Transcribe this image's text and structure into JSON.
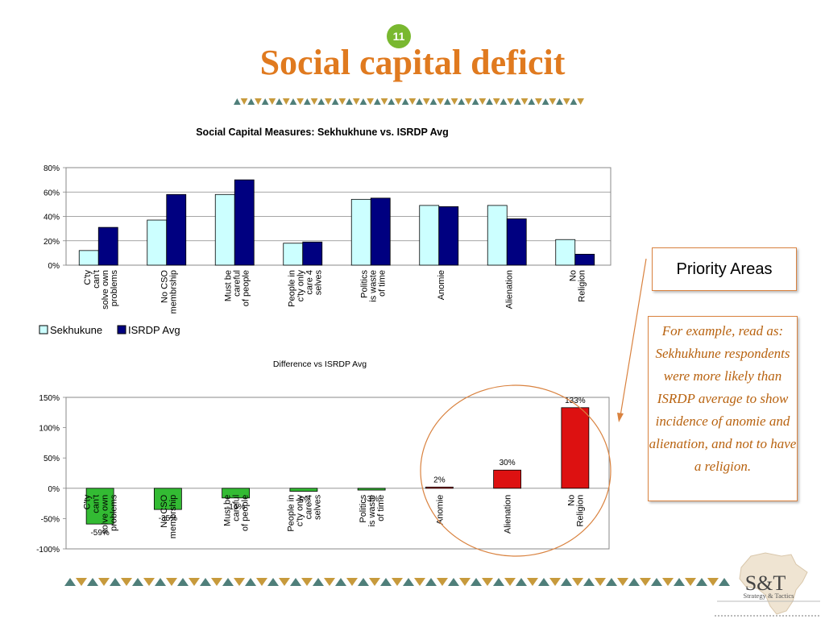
{
  "slide": {
    "number": "11",
    "title": "Social capital deficit"
  },
  "colors": {
    "title": "#e07a1f",
    "sekhukune": "#ccffff",
    "isrdp": "#000080",
    "negative": "#33bb33",
    "positive": "#dd1111",
    "border_accent": "#d9823f"
  },
  "callouts": {
    "priority": "Priority Areas",
    "note": "For example, read as: Sekhukhune respondents were more likely than ISRDP average to show incidence of  anomie and alienation, and not to have a religion."
  },
  "logo": {
    "brand": "S&T",
    "tagline": "Strategy & Tactics",
    "icon": "africa-map-icon"
  },
  "chart_data": [
    {
      "type": "bar",
      "title": "Social Capital Measures: Sekhukhune vs. ISRDP Avg",
      "categories": [
        "C'ty can't solve own problems",
        "No CSO membrship",
        "Must be careful of people",
        "People in c'ty only care 4 selves",
        "Politics is waste of time",
        "Anomie",
        "Alienation",
        "No Religion"
      ],
      "series": [
        {
          "name": "Sekhukune",
          "values": [
            0.12,
            0.37,
            0.58,
            0.18,
            0.54,
            0.49,
            0.49,
            0.21
          ]
        },
        {
          "name": "ISRDP Avg",
          "values": [
            0.31,
            0.58,
            0.7,
            0.19,
            0.55,
            0.48,
            0.38,
            0.09
          ]
        }
      ],
      "ylim": [
        0,
        0.8
      ],
      "yticks": [
        "0%",
        "20%",
        "40%",
        "60%",
        "80%"
      ],
      "legend": "bottom-left",
      "grid": true
    },
    {
      "type": "bar",
      "title": "Difference vs ISRDP Avg",
      "categories": [
        "C'ty can't solve own problems",
        "No CSO membrship",
        "Must be careful of people",
        "People in c'ty only care 4 selves",
        "Politics is waste of time",
        "Anomie",
        "Alienation",
        "No Religion"
      ],
      "values": [
        -0.59,
        -0.35,
        -0.16,
        -0.05,
        -0.03,
        0.02,
        0.3,
        1.33
      ],
      "labels": [
        "-59%",
        "-35%",
        "-16%",
        "-5%",
        "-3%",
        "2%",
        "30%",
        "133%"
      ],
      "ylim": [
        -1.0,
        1.5
      ],
      "yticks": [
        "-100%",
        "-50%",
        "0%",
        "50%",
        "100%",
        "150%"
      ],
      "grid": false
    }
  ]
}
